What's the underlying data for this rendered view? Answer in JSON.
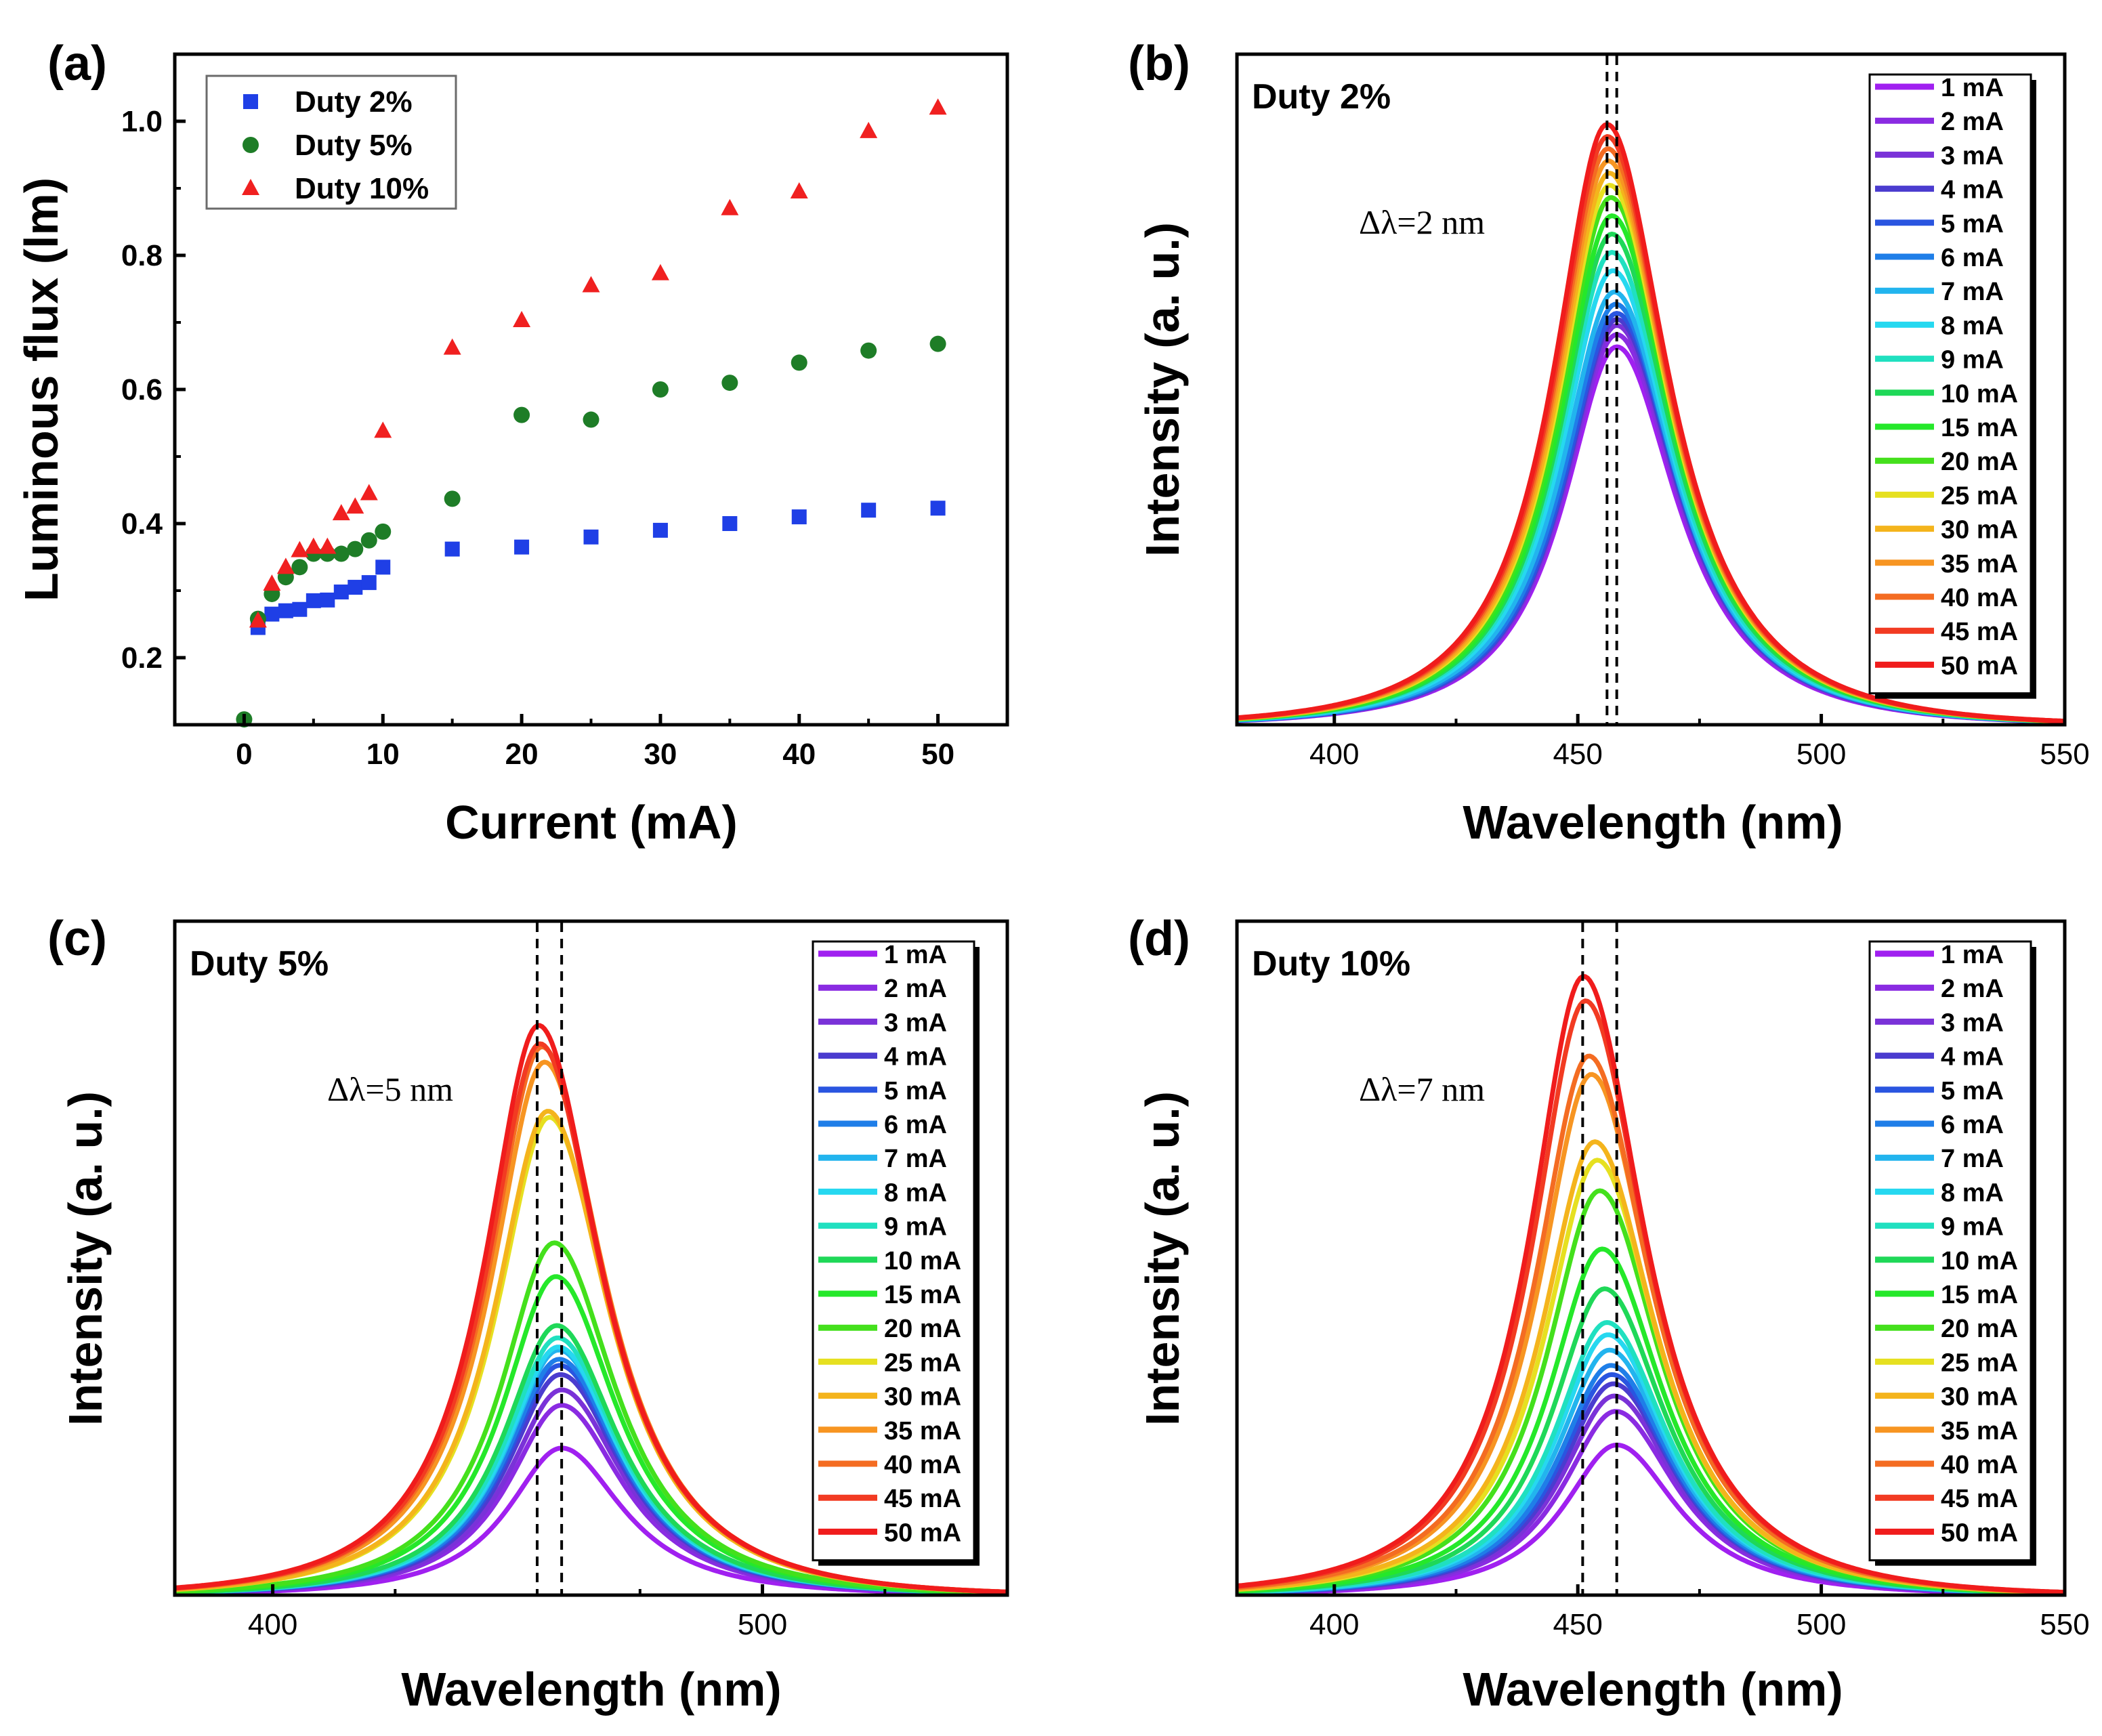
{
  "chart_data": [
    {
      "panel_label": "(a)",
      "type": "scatter",
      "xlabel": "Current (mA)",
      "ylabel": "Luminous flux (lm)",
      "xlim": [
        -5,
        55
      ],
      "ylim": [
        0.1,
        1.1
      ],
      "xticks": [
        "0",
        "10",
        "20",
        "30",
        "40",
        "50"
      ],
      "yticks": [
        "0.2",
        "0.4",
        "0.6",
        "0.8",
        "1.0"
      ],
      "legend_position": "top-left",
      "series": [
        {
          "name": "Duty 2%",
          "marker": "square",
          "color": "#1f3fe6",
          "x": [
            1,
            2,
            3,
            4,
            5,
            6,
            7,
            8,
            9,
            10,
            15,
            20,
            25,
            30,
            35,
            40,
            45,
            50
          ],
          "y": [
            0.245,
            0.265,
            0.27,
            0.272,
            0.285,
            0.286,
            0.298,
            0.305,
            0.312,
            0.335,
            0.362,
            0.365,
            0.38,
            0.39,
            0.4,
            0.41,
            0.42,
            0.423
          ]
        },
        {
          "name": "Duty 5%",
          "marker": "circle",
          "color": "#1e7d27",
          "x": [
            0,
            1,
            2,
            3,
            4,
            5,
            6,
            7,
            8,
            9,
            10,
            15,
            20,
            25,
            30,
            35,
            40,
            45,
            50
          ],
          "y": [
            0.108,
            0.258,
            0.295,
            0.32,
            0.335,
            0.355,
            0.355,
            0.355,
            0.362,
            0.375,
            0.388,
            0.437,
            0.562,
            0.555,
            0.6,
            0.61,
            0.64,
            0.658,
            0.668
          ]
        },
        {
          "name": "Duty 10%",
          "marker": "triangle",
          "color": "#f02020",
          "x": [
            1,
            2,
            3,
            4,
            5,
            6,
            7,
            8,
            9,
            10,
            15,
            20,
            25,
            30,
            35,
            40,
            45,
            50
          ],
          "y": [
            0.255,
            0.31,
            0.335,
            0.36,
            0.365,
            0.365,
            0.415,
            0.425,
            0.445,
            0.538,
            0.662,
            0.703,
            0.755,
            0.773,
            0.87,
            0.895,
            0.985,
            1.02
          ]
        }
      ]
    },
    {
      "panel_label": "(b)",
      "type": "line",
      "title": "Duty 2%",
      "annotation": "Δλ=2 nm",
      "xlabel": "Wavelength (nm)",
      "ylabel": "Intensity (a. u.)",
      "xlim": [
        380,
        550
      ],
      "ylim": [
        0,
        1.1
      ],
      "xticks": [
        "400",
        "450",
        "500",
        "550"
      ],
      "dashed_lines": [
        456,
        458
      ],
      "legend_position": "top-right",
      "legend_labels": [
        "1 mA",
        "2 mA",
        "3 mA",
        "4 mA",
        "5 mA",
        "6 mA",
        "7 mA",
        "8 mA",
        "9 mA",
        "10 mA",
        "15 mA",
        "20 mA",
        "25 mA",
        "30 mA",
        "35 mA",
        "40 mA",
        "45 mA",
        "50 mA"
      ],
      "colors": [
        "#a020f0",
        "#8a2be2",
        "#7a32d8",
        "#4b3ccf",
        "#2a55e0",
        "#1f7ee8",
        "#22b4ee",
        "#26d8f0",
        "#20e0c0",
        "#1fd858",
        "#25e82a",
        "#44e01c",
        "#e6e020",
        "#f4b41c",
        "#f79522",
        "#f46c22",
        "#f23b22",
        "#f01c1c"
      ],
      "peak_heights": [
        0.62,
        0.64,
        0.655,
        0.665,
        0.675,
        0.69,
        0.71,
        0.745,
        0.775,
        0.805,
        0.835,
        0.865,
        0.885,
        0.905,
        0.925,
        0.945,
        0.965,
        0.985
      ],
      "peak_centers": [
        458,
        458,
        458,
        458,
        458,
        457.8,
        457.5,
        457.2,
        457,
        457,
        457,
        456.8,
        456.6,
        456.5,
        456.3,
        456.2,
        456.1,
        456
      ]
    },
    {
      "panel_label": "(c)",
      "type": "line",
      "title": "Duty 5%",
      "annotation": "Δλ=5 nm",
      "xlabel": "Wavelength (nm)",
      "ylabel": "Intensity (a. u.)",
      "xlim": [
        380,
        550
      ],
      "ylim": [
        0,
        1.1
      ],
      "xticks": [
        "400",
        "500"
      ],
      "dashed_lines": [
        454,
        459
      ],
      "legend_position": "top-right",
      "legend_labels": [
        "1 mA",
        "2 mA",
        "3 mA",
        "4 mA",
        "5 mA",
        "6 mA",
        "7 mA",
        "8 mA",
        "9 mA",
        "10 mA",
        "15 mA",
        "20 mA",
        "25 mA",
        "30 mA",
        "35 mA",
        "40 mA",
        "45 mA",
        "50 mA"
      ],
      "colors": [
        "#a020f0",
        "#8a2be2",
        "#7a32d8",
        "#4b3ccf",
        "#2a55e0",
        "#1f7ee8",
        "#22b4ee",
        "#26d8f0",
        "#20e0c0",
        "#1fd858",
        "#25e82a",
        "#44e01c",
        "#e6e020",
        "#f4b41c",
        "#f79522",
        "#f46c22",
        "#f23b22",
        "#f01c1c"
      ],
      "peak_heights": [
        0.24,
        0.31,
        0.335,
        0.36,
        0.375,
        0.385,
        0.4,
        0.405,
        0.42,
        0.44,
        0.52,
        0.575,
        0.78,
        0.79,
        0.87,
        0.895,
        0.9,
        0.93
      ],
      "peak_centers": [
        459,
        459,
        459,
        458.8,
        458.6,
        458.5,
        458.4,
        458.3,
        458.2,
        458,
        457.8,
        457.5,
        456.5,
        456.2,
        455.5,
        455,
        454.6,
        454.3
      ]
    },
    {
      "panel_label": "(d)",
      "type": "line",
      "title": "Duty 10%",
      "annotation": "Δλ=7 nm",
      "xlabel": "Wavelength (nm)",
      "ylabel": "Intensity (a. u.)",
      "xlim": [
        380,
        550
      ],
      "ylim": [
        0,
        1.1
      ],
      "xticks": [
        "400",
        "450",
        "500",
        "550"
      ],
      "dashed_lines": [
        451,
        458
      ],
      "legend_position": "top-right",
      "legend_labels": [
        "1 mA",
        "2 mA",
        "3 mA",
        "4 mA",
        "5 mA",
        "6 mA",
        "7 mA",
        "8 mA",
        "9 mA",
        "10 mA",
        "15 mA",
        "20 mA",
        "25 mA",
        "30 mA",
        "35 mA",
        "40 mA",
        "45 mA",
        "50 mA"
      ],
      "colors": [
        "#a020f0",
        "#8a2be2",
        "#7a32d8",
        "#4b3ccf",
        "#2a55e0",
        "#1f7ee8",
        "#22b4ee",
        "#26d8f0",
        "#20e0c0",
        "#1fd858",
        "#25e82a",
        "#44e01c",
        "#e6e020",
        "#f4b41c",
        "#f79522",
        "#f46c22",
        "#f23b22",
        "#f01c1c"
      ],
      "peak_heights": [
        0.245,
        0.3,
        0.325,
        0.345,
        0.36,
        0.375,
        0.4,
        0.425,
        0.445,
        0.5,
        0.565,
        0.66,
        0.71,
        0.74,
        0.85,
        0.88,
        0.97,
        1.01
      ],
      "peak_centers": [
        458,
        457.8,
        457.5,
        457.3,
        457,
        456.8,
        456.5,
        456.2,
        456,
        455.5,
        455,
        454.5,
        454,
        453.5,
        452.8,
        452.3,
        451.6,
        451.2
      ]
    }
  ]
}
